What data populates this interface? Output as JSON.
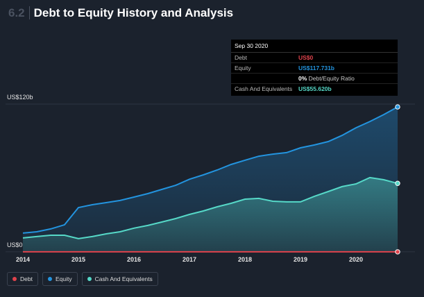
{
  "chart_data": {
    "type": "line",
    "section": "6.2",
    "title": "Debt to Equity History and Analysis",
    "x": [
      2014,
      2014.25,
      2014.5,
      2014.75,
      2015,
      2015.25,
      2015.5,
      2015.75,
      2016,
      2016.25,
      2016.5,
      2016.75,
      2017,
      2017.25,
      2017.5,
      2017.75,
      2018,
      2018.25,
      2018.5,
      2018.75,
      2019,
      2019.25,
      2019.5,
      2019.75,
      2020,
      2020.25,
      2020.5,
      2020.75
    ],
    "xlim": [
      2013.75,
      2020.95
    ],
    "xticks": [
      2014,
      2015,
      2016,
      2017,
      2018,
      2019,
      2020
    ],
    "ylim": [
      -4,
      133
    ],
    "yticks": [
      {
        "value": 120,
        "label": "US$120b"
      },
      {
        "value": 0,
        "label": "US$0"
      }
    ],
    "grid": true,
    "series": [
      {
        "name": "Debt",
        "color": "#e0434c",
        "values": [
          0,
          0,
          0,
          0,
          0,
          0,
          0,
          0,
          0,
          0,
          0,
          0,
          0,
          0,
          0,
          0,
          0,
          0,
          0,
          0,
          0,
          0,
          0,
          0,
          0,
          0,
          0,
          0
        ]
      },
      {
        "name": "Equity",
        "color": "#2394df",
        "values": [
          15.2,
          16.3,
          18.6,
          22,
          36,
          38.3,
          40,
          41.7,
          44.5,
          47.3,
          50.7,
          54,
          59,
          62.5,
          66.5,
          71,
          74.4,
          77.7,
          79.4,
          80.6,
          84.5,
          86.8,
          89.6,
          94.6,
          100.8,
          105.9,
          111.5,
          117.731
        ]
      },
      {
        "name": "Cash And Equivalents",
        "color": "#56d9c8",
        "values": [
          11.3,
          12.4,
          13.5,
          13.5,
          10.7,
          12.4,
          14.6,
          16.3,
          19.2,
          21.4,
          24.2,
          27,
          30.4,
          33.2,
          36.6,
          39.4,
          42.8,
          43.4,
          41.1,
          40.6,
          40.6,
          45.1,
          49,
          53,
          55.2,
          60.3,
          58.6,
          55.62
        ]
      }
    ],
    "tooltip": {
      "date": "Sep 30 2020",
      "rows": [
        {
          "label": "Debt",
          "value": "US$0"
        },
        {
          "label": "Equity",
          "value": "US$117.731b"
        },
        {
          "label": "Cash And Equivalents",
          "value": "US$55.620b"
        }
      ],
      "ratio_value": "0%",
      "ratio_label": "Debt/Equity Ratio"
    }
  }
}
